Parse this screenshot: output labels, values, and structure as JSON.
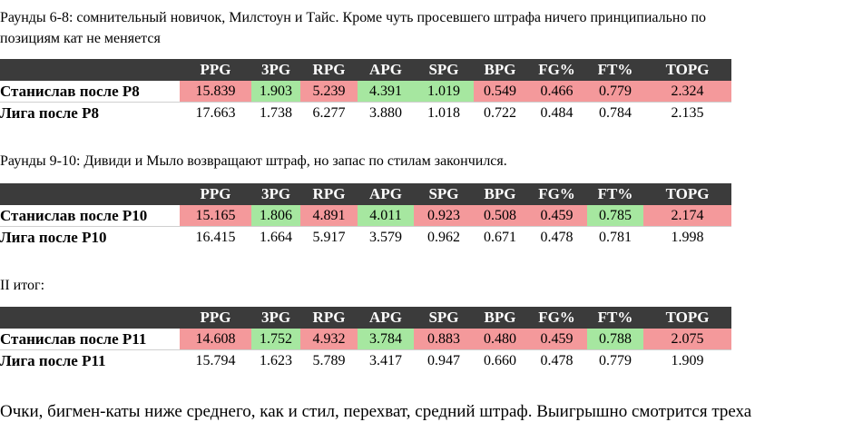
{
  "colors": {
    "header_bg": "#3b3b3b",
    "worse": "#f4999b",
    "better": "#a6e7a0"
  },
  "columns": [
    "PPG",
    "3PG",
    "RPG",
    "APG",
    "SPG",
    "BPG",
    "FG%",
    "FT%",
    "TOPG"
  ],
  "text": {
    "intro_line1": "Раунды 6-8: сомнительный новичок, Милстоун и Тайс. Кроме чуть просевшего штрафа ничего принципиально по",
    "intro_line2": "позициям кат не меняется",
    "section2": "Раунды 9-10: Дивиди и Мыло возвращают штраф, но запас по стилам закончился.",
    "section3": "II итог:",
    "footer": "Очки, бигмен-каты ниже среднего, как и стил, перехват, средний штраф. Выигрышно смотрится треха"
  },
  "tables": [
    {
      "row1": {
        "label": "Станислав после Р8",
        "values": [
          "15.839",
          "1.903",
          "5.239",
          "4.391",
          "1.019",
          "0.549",
          "0.466",
          "0.779",
          "2.324"
        ],
        "highlight": [
          "red",
          "green",
          "red",
          "green",
          "green",
          "red",
          "red",
          "red",
          "red"
        ]
      },
      "row2": {
        "label": "Лига после Р8",
        "values": [
          "17.663",
          "1.738",
          "6.277",
          "3.880",
          "1.018",
          "0.722",
          "0.484",
          "0.784",
          "2.135"
        ]
      }
    },
    {
      "row1": {
        "label": "Станислав после Р10",
        "values": [
          "15.165",
          "1.806",
          "4.891",
          "4.011",
          "0.923",
          "0.508",
          "0.459",
          "0.785",
          "2.174"
        ],
        "highlight": [
          "red",
          "green",
          "red",
          "green",
          "red",
          "red",
          "red",
          "green",
          "red"
        ]
      },
      "row2": {
        "label": "Лига после Р10",
        "values": [
          "16.415",
          "1.664",
          "5.917",
          "3.579",
          "0.962",
          "0.671",
          "0.478",
          "0.781",
          "1.998"
        ]
      }
    },
    {
      "row1": {
        "label": "Станислав после Р11",
        "values": [
          "14.608",
          "1.752",
          "4.932",
          "3.784",
          "0.883",
          "0.480",
          "0.459",
          "0.788",
          "2.075"
        ],
        "highlight": [
          "red",
          "green",
          "red",
          "green",
          "red",
          "red",
          "red",
          "green",
          "red"
        ]
      },
      "row2": {
        "label": "Лига после Р11",
        "values": [
          "15.794",
          "1.623",
          "5.789",
          "3.417",
          "0.947",
          "0.660",
          "0.478",
          "0.779",
          "1.909"
        ]
      }
    }
  ]
}
